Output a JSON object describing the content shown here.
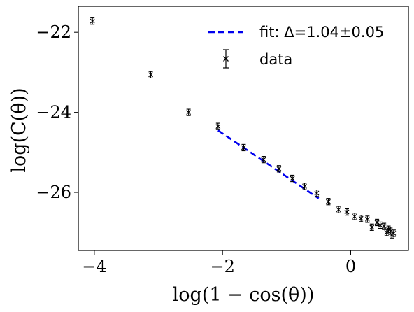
{
  "chart_data": {
    "type": "scatter",
    "title": "",
    "xlabel": "log(1 − cos(θ))",
    "ylabel": "log(C(θ))",
    "xlim": [
      -4.25,
      0.9
    ],
    "ylim": [
      -27.45,
      -21.35
    ],
    "xticks": [
      -4,
      -2,
      0
    ],
    "xtick_labels": [
      "−4",
      "−2",
      "0"
    ],
    "yticks": [
      -22,
      -24,
      -26
    ],
    "ytick_labels": [
      "−22",
      "−24",
      "−26"
    ],
    "grid": false,
    "legend_position": "top-right",
    "series": [
      {
        "name": "data",
        "kind": "errorbar",
        "marker": "x",
        "color": "#000000",
        "x": [
          -4.03,
          -3.12,
          -2.53,
          -2.07,
          -1.67,
          -1.36,
          -1.12,
          -0.91,
          -0.72,
          -0.53,
          -0.35,
          -0.19,
          -0.06,
          0.06,
          0.16,
          0.26,
          0.33,
          0.41,
          0.46,
          0.52,
          0.56,
          0.59,
          0.62,
          0.64,
          0.67
        ],
        "y": [
          -21.72,
          -23.06,
          -24.0,
          -24.35,
          -24.88,
          -25.18,
          -25.41,
          -25.65,
          -25.85,
          -26.02,
          -26.23,
          -26.43,
          -26.49,
          -26.6,
          -26.65,
          -26.67,
          -26.87,
          -26.75,
          -26.82,
          -26.85,
          -27.0,
          -26.92,
          -26.97,
          -27.06,
          -27.02
        ],
        "yerr": [
          0.08,
          0.08,
          0.08,
          0.08,
          0.08,
          0.08,
          0.08,
          0.08,
          0.08,
          0.08,
          0.08,
          0.08,
          0.08,
          0.08,
          0.08,
          0.08,
          0.08,
          0.08,
          0.08,
          0.08,
          0.08,
          0.08,
          0.08,
          0.08,
          0.08
        ]
      },
      {
        "name": "fit: Δ=1.04±0.05",
        "kind": "line",
        "style": "dashed",
        "color": "#0000ee",
        "x": [
          -2.07,
          -0.5
        ],
        "y": [
          -24.45,
          -26.15
        ]
      }
    ]
  }
}
